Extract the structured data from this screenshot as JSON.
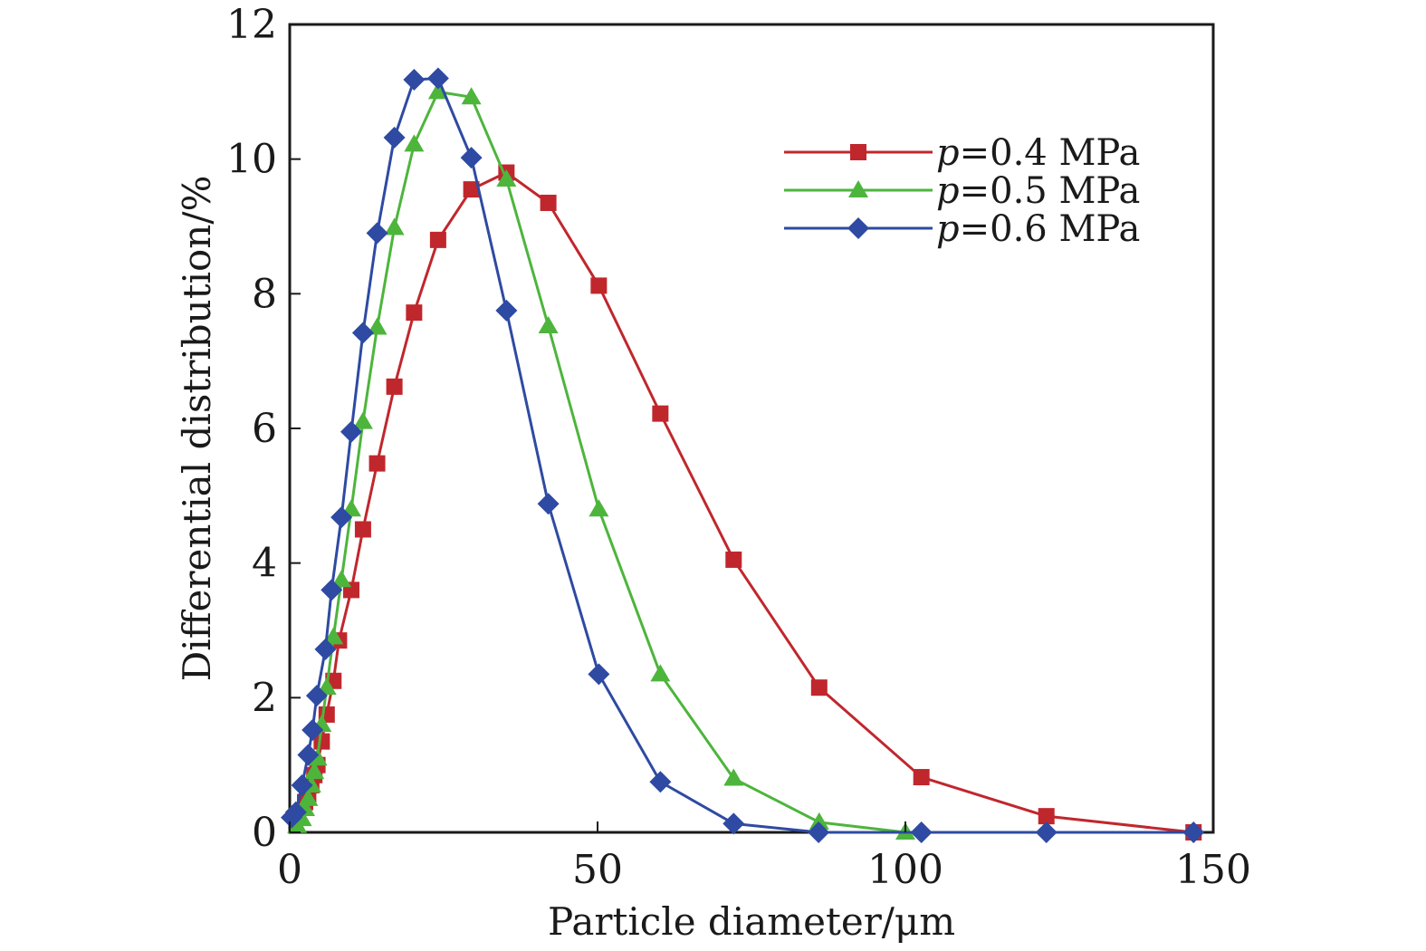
{
  "chart_data": {
    "type": "line",
    "title": "",
    "xlabel": "Particle diameter/μm",
    "ylabel": "Differential distribution/%",
    "xlim": [
      0,
      150
    ],
    "ylim": [
      0,
      12
    ],
    "xticks": [
      0,
      50,
      100,
      150
    ],
    "yticks": [
      0,
      2,
      4,
      6,
      8,
      10,
      12
    ],
    "xtick_labels": [
      "0",
      "50",
      "100",
      "150"
    ],
    "ytick_labels": [
      "0",
      "2",
      "4",
      "6",
      "8",
      "10",
      "12"
    ],
    "grid": false,
    "legend_position": "top-right",
    "series": [
      {
        "name": "p=0.4 MPa",
        "legend_var": "p",
        "legend_value": "=0.4 MPa",
        "color": "#c0272d",
        "marker": "square",
        "x": [
          2.5,
          3.0,
          3.5,
          4.0,
          4.5,
          5.2,
          6.0,
          7.1,
          8.0,
          10.0,
          11.9,
          14.2,
          17.0,
          20.2,
          24.1,
          29.5,
          35.2,
          42.0,
          50.2,
          60.2,
          72.1,
          86.0,
          102.6,
          122.9,
          146.8
        ],
        "y": [
          0.45,
          0.55,
          0.7,
          0.85,
          1.0,
          1.35,
          1.75,
          2.25,
          2.85,
          3.6,
          4.5,
          5.48,
          6.62,
          7.72,
          8.8,
          9.55,
          9.8,
          9.35,
          8.12,
          6.22,
          4.05,
          2.15,
          0.82,
          0.24,
          0.0
        ]
      },
      {
        "name": "p=0.5 MPa",
        "legend_var": "p",
        "legend_value": "=0.5 MPa",
        "color": "#4db53c",
        "marker": "triangle",
        "x": [
          1.2,
          2.0,
          2.5,
          3.0,
          3.5,
          4.0,
          4.5,
          5.2,
          6.0,
          7.1,
          8.4,
          10.0,
          11.9,
          14.2,
          17.0,
          20.2,
          24.1,
          29.5,
          35.2,
          42.0,
          50.2,
          60.2,
          72.1,
          86.0,
          100.0
        ],
        "y": [
          0.1,
          0.2,
          0.35,
          0.5,
          0.7,
          0.9,
          1.1,
          1.6,
          2.15,
          2.9,
          3.75,
          4.8,
          6.1,
          7.5,
          8.98,
          10.22,
          11.0,
          10.92,
          9.7,
          7.52,
          4.8,
          2.35,
          0.8,
          0.15,
          0.0
        ]
      },
      {
        "name": "p=0.6 MPa",
        "legend_var": "p",
        "legend_value": "=0.6 MPa",
        "color": "#2e4aa2",
        "marker": "diamond",
        "x": [
          0.3,
          1.0,
          2.0,
          3.0,
          3.7,
          4.4,
          5.8,
          6.8,
          8.4,
          10.0,
          11.9,
          14.2,
          17.0,
          20.2,
          24.1,
          29.5,
          35.2,
          42.0,
          50.2,
          60.2,
          72.1,
          85.9,
          102.6,
          122.9,
          146.8
        ],
        "y": [
          0.22,
          0.3,
          0.7,
          1.15,
          1.52,
          2.03,
          2.72,
          3.6,
          4.68,
          5.95,
          7.42,
          8.9,
          10.32,
          11.18,
          11.2,
          10.02,
          7.75,
          4.88,
          2.35,
          0.75,
          0.13,
          0.0,
          0.0,
          0.0,
          0.0
        ]
      }
    ]
  }
}
